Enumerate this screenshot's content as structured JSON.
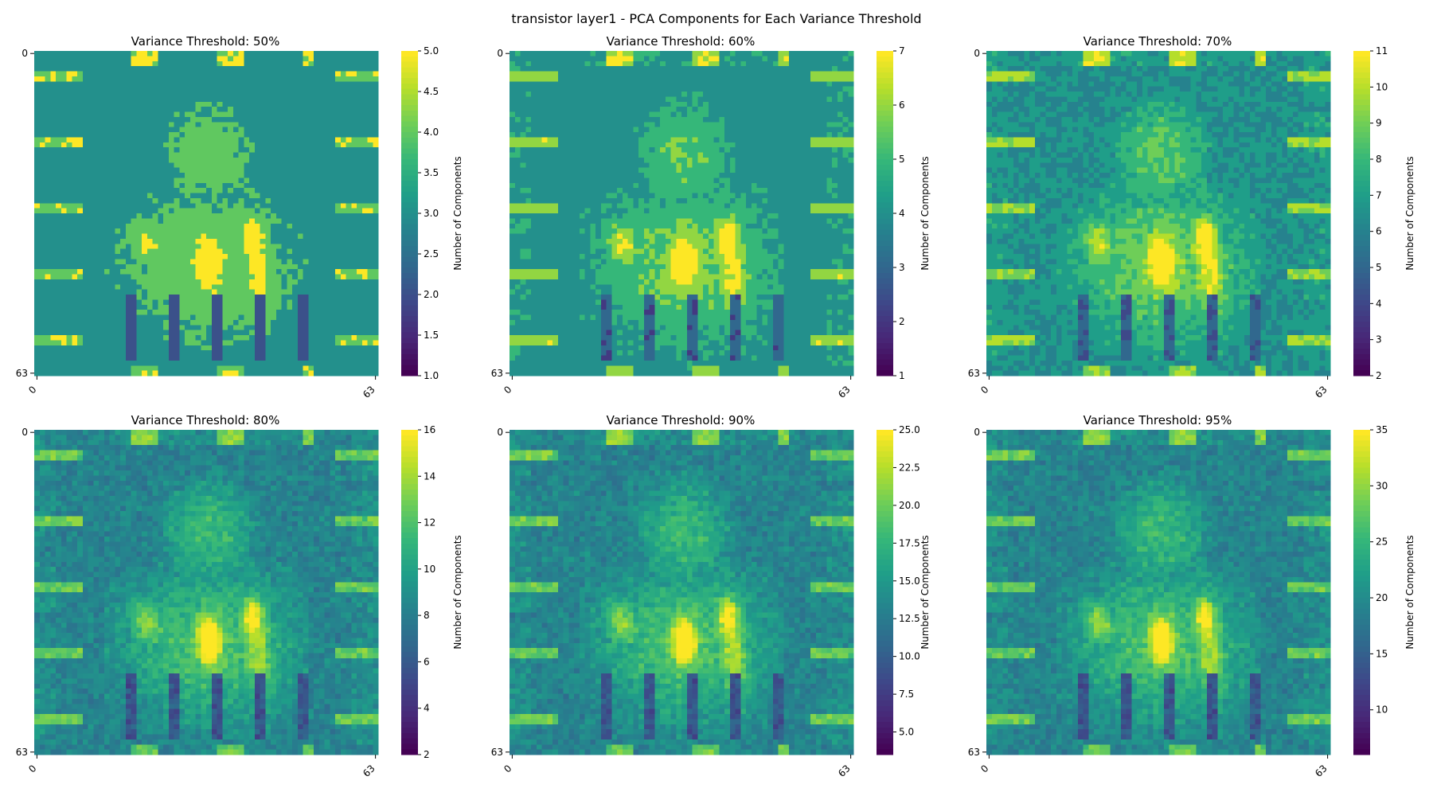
{
  "figure": {
    "title": "transistor layer1 - PCA Components for Each Variance Threshold"
  },
  "palette": [
    "#440154",
    "#482878",
    "#3e4989",
    "#31688e",
    "#26828e",
    "#1f9e89",
    "#35b779",
    "#6ece58",
    "#b5de2b",
    "#fde725"
  ],
  "chart_data": [
    {
      "type": "heatmap",
      "title": "Variance Threshold: 50%",
      "colorbar_label": "Number of Components",
      "x_ticks": [
        "0",
        "63"
      ],
      "y_ticks": [
        "0",
        "63"
      ],
      "grid_size": 64,
      "vmin": 1,
      "vmax": 5,
      "colorbar_ticks": [
        "1.0",
        "1.5",
        "2.0",
        "2.5",
        "3.0",
        "3.5",
        "4.0",
        "4.5",
        "5.0"
      ],
      "colorbar_tick_values": [
        1.0,
        1.5,
        2.0,
        2.5,
        3.0,
        3.5,
        4.0,
        4.5,
        5.0
      ],
      "quantized": true
    },
    {
      "type": "heatmap",
      "title": "Variance Threshold: 60%",
      "colorbar_label": "Number of Components",
      "x_ticks": [
        "0",
        "63"
      ],
      "y_ticks": [
        "0",
        "63"
      ],
      "grid_size": 64,
      "vmin": 1,
      "vmax": 7,
      "colorbar_ticks": [
        "1",
        "2",
        "3",
        "4",
        "5",
        "6",
        "7"
      ],
      "colorbar_tick_values": [
        1,
        2,
        3,
        4,
        5,
        6,
        7
      ],
      "quantized": true
    },
    {
      "type": "heatmap",
      "title": "Variance Threshold: 70%",
      "colorbar_label": "Number of Components",
      "x_ticks": [
        "0",
        "63"
      ],
      "y_ticks": [
        "0",
        "63"
      ],
      "grid_size": 64,
      "vmin": 2,
      "vmax": 11,
      "colorbar_ticks": [
        "2",
        "3",
        "4",
        "5",
        "6",
        "7",
        "8",
        "9",
        "10",
        "11"
      ],
      "colorbar_tick_values": [
        2,
        3,
        4,
        5,
        6,
        7,
        8,
        9,
        10,
        11
      ],
      "quantized": true
    },
    {
      "type": "heatmap",
      "title": "Variance Threshold: 80%",
      "colorbar_label": "Number of Components",
      "x_ticks": [
        "0",
        "63"
      ],
      "y_ticks": [
        "0",
        "63"
      ],
      "grid_size": 64,
      "vmin": 2,
      "vmax": 16,
      "colorbar_ticks": [
        "2",
        "4",
        "6",
        "8",
        "10",
        "12",
        "14",
        "16"
      ],
      "colorbar_tick_values": [
        2,
        4,
        6,
        8,
        10,
        12,
        14,
        16
      ],
      "quantized": false
    },
    {
      "type": "heatmap",
      "title": "Variance Threshold: 90%",
      "colorbar_label": "Number of Components",
      "x_ticks": [
        "0",
        "63"
      ],
      "y_ticks": [
        "0",
        "63"
      ],
      "grid_size": 64,
      "vmin": 3.5,
      "vmax": 25,
      "colorbar_ticks": [
        "5.0",
        "7.5",
        "10.0",
        "12.5",
        "15.0",
        "17.5",
        "20.0",
        "22.5",
        "25.0"
      ],
      "colorbar_tick_values": [
        5.0,
        7.5,
        10.0,
        12.5,
        15.0,
        17.5,
        20.0,
        22.5,
        25.0
      ],
      "quantized": false
    },
    {
      "type": "heatmap",
      "title": "Variance Threshold: 95%",
      "colorbar_label": "Number of Components",
      "x_ticks": [
        "0",
        "63"
      ],
      "y_ticks": [
        "0",
        "63"
      ],
      "grid_size": 64,
      "vmin": 6,
      "vmax": 35,
      "colorbar_ticks": [
        "10",
        "15",
        "20",
        "25",
        "30",
        "35"
      ],
      "colorbar_tick_values": [
        10,
        15,
        20,
        25,
        30,
        35
      ],
      "quantized": false
    }
  ]
}
